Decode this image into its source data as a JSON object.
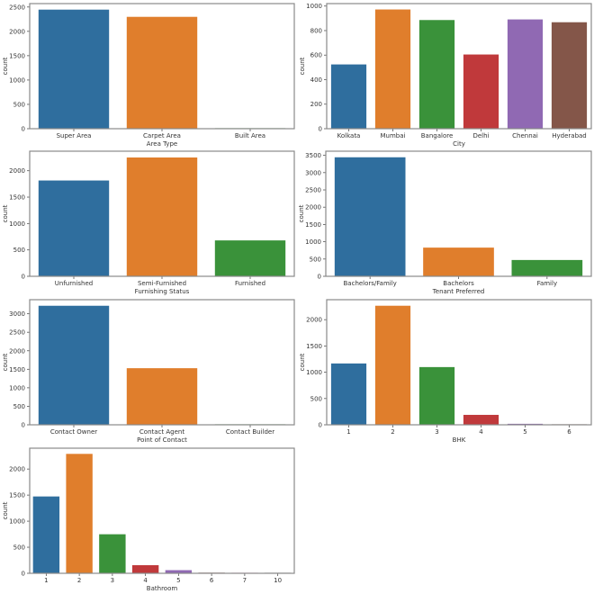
{
  "chart_data": [
    {
      "id": "area-type",
      "type": "bar",
      "title": "",
      "xlabel": "Area Type",
      "ylabel": "count",
      "categories": [
        "Super Area",
        "Carpet Area",
        "Built Area"
      ],
      "values": [
        2446,
        2298,
        2
      ],
      "colors": [
        "#2f6e9e",
        "#e07e2c",
        "#3a923a"
      ],
      "yticks": [
        0,
        500,
        1000,
        1500,
        2000,
        2500
      ],
      "ylim": [
        0,
        2570
      ],
      "grid": false
    },
    {
      "id": "city",
      "type": "bar",
      "title": "",
      "xlabel": "City",
      "ylabel": "count",
      "categories": [
        "Kolkata",
        "Mumbai",
        "Bangalore",
        "Delhi",
        "Chennai",
        "Hyderabad"
      ],
      "values": [
        524,
        972,
        886,
        605,
        891,
        868
      ],
      "colors": [
        "#2f6e9e",
        "#e07e2c",
        "#3a923a",
        "#c0393b",
        "#9069b3",
        "#845649"
      ],
      "yticks": [
        0,
        200,
        400,
        600,
        800,
        1000
      ],
      "ylim": [
        0,
        1020
      ],
      "grid": false
    },
    {
      "id": "furnishing-status",
      "type": "bar",
      "title": "",
      "xlabel": "Furnishing Status",
      "ylabel": "count",
      "categories": [
        "Unfurnished",
        "Semi-Furnished",
        "Furnished"
      ],
      "values": [
        1815,
        2251,
        680
      ],
      "colors": [
        "#2f6e9e",
        "#e07e2c",
        "#3a923a"
      ],
      "yticks": [
        0,
        500,
        1000,
        1500,
        2000
      ],
      "ylim": [
        0,
        2370
      ],
      "grid": false
    },
    {
      "id": "tenant-preferred",
      "type": "bar",
      "title": "",
      "xlabel": "Tenant Preferred",
      "ylabel": "count",
      "categories": [
        "Bachelors/Family",
        "Bachelors",
        "Family"
      ],
      "values": [
        3444,
        830,
        472
      ],
      "colors": [
        "#2f6e9e",
        "#e07e2c",
        "#3a923a"
      ],
      "yticks": [
        0,
        500,
        1000,
        1500,
        2000,
        2500,
        3000,
        3500
      ],
      "ylim": [
        0,
        3620
      ],
      "grid": false
    },
    {
      "id": "point-of-contact",
      "type": "bar",
      "title": "",
      "xlabel": "Point of Contact",
      "ylabel": "count",
      "categories": [
        "Contact Owner",
        "Contact Agent",
        "Contact Builder"
      ],
      "values": [
        3216,
        1529,
        1
      ],
      "colors": [
        "#2f6e9e",
        "#e07e2c",
        "#3a923a"
      ],
      "yticks": [
        0,
        500,
        1000,
        1500,
        2000,
        2500,
        3000
      ],
      "ylim": [
        0,
        3380
      ],
      "grid": false
    },
    {
      "id": "bhk",
      "type": "bar",
      "title": "",
      "xlabel": "BHK",
      "ylabel": "count",
      "categories": [
        "1",
        "2",
        "3",
        "4",
        "5",
        "6"
      ],
      "values": [
        1167,
        2265,
        1098,
        189,
        19,
        8
      ],
      "colors": [
        "#2f6e9e",
        "#e07e2c",
        "#3a923a",
        "#c0393b",
        "#9069b3",
        "#845649"
      ],
      "yticks": [
        0,
        500,
        1000,
        1500,
        2000
      ],
      "ylim": [
        0,
        2380
      ],
      "grid": false
    },
    {
      "id": "bathroom",
      "type": "bar",
      "title": "",
      "xlabel": "Bathroom",
      "ylabel": "count",
      "categories": [
        "1",
        "2",
        "3",
        "4",
        "5",
        "6",
        "7",
        "10"
      ],
      "values": [
        1474,
        2291,
        749,
        156,
        60,
        12,
        3,
        1
      ],
      "colors": [
        "#2f6e9e",
        "#e07e2c",
        "#3a923a",
        "#c0393b",
        "#9069b3",
        "#845649",
        "#d684bd",
        "#7f7f7f"
      ],
      "yticks": [
        0,
        500,
        1000,
        1500,
        2000
      ],
      "ylim": [
        0,
        2400
      ],
      "grid": false
    }
  ]
}
